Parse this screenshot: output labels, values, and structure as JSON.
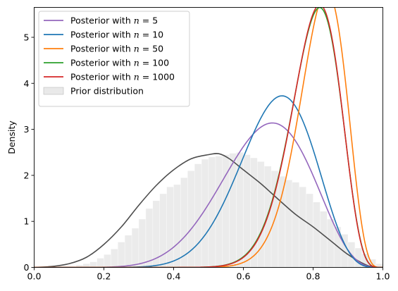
{
  "chart_data": {
    "type": "line",
    "title": "",
    "xlabel": "",
    "ylabel": "Density",
    "xlim": [
      0.0,
      1.0
    ],
    "ylim": [
      0.0,
      5.65
    ],
    "xticks": [
      "0.0",
      "0.2",
      "0.4",
      "0.6",
      "0.8",
      "1.0"
    ],
    "yticks": [
      "0",
      "1",
      "2",
      "3",
      "4",
      "5"
    ],
    "grid": false,
    "legend_position": "top-left",
    "series": [
      {
        "name": "Posterior with $n = 5$",
        "label_prefix": "Posterior with ",
        "label_math": "n",
        "label_value": "= 5",
        "color": "#9467bd",
        "alpha": 9.2,
        "beta": 4.8
      },
      {
        "name": "Posterior with $n = 10$",
        "label_prefix": "Posterior with ",
        "label_math": "n",
        "label_value": "= 10",
        "color": "#1f77b4",
        "alpha": 12.8,
        "beta": 5.8
      },
      {
        "name": "Posterior with $n = 50$",
        "label_prefix": "Posterior with ",
        "label_math": "n",
        "label_value": "= 50",
        "color": "#ff7f0e",
        "alpha": 26.0,
        "beta": 5.8
      },
      {
        "name": "Posterior with $n = 100$",
        "label_prefix": "Posterior with ",
        "label_math": "n",
        "label_value": "= 100",
        "color": "#2ca02c",
        "alpha": 24.5,
        "beta": 6.2
      },
      {
        "name": "Posterior with $n = 1000$",
        "label_prefix": "Posterior with ",
        "label_math": "n",
        "label_value": "= 1000",
        "color": "#d62728",
        "alpha": 25.0,
        "beta": 6.3
      }
    ],
    "prior": {
      "name": "Prior distribution",
      "color": "#d3d3d3",
      "kde_color": "#4d4d4d",
      "histogram": {
        "bin_start": 0.0,
        "bin_width": 0.02,
        "densities": [
          0.0,
          0.0,
          0.0,
          0.0,
          0.02,
          0.02,
          0.05,
          0.08,
          0.12,
          0.2,
          0.28,
          0.4,
          0.55,
          0.7,
          0.85,
          1.05,
          1.28,
          1.45,
          1.6,
          1.75,
          1.8,
          1.95,
          2.1,
          2.25,
          2.35,
          2.4,
          2.42,
          2.45,
          2.48,
          2.5,
          2.45,
          2.38,
          2.3,
          2.2,
          2.1,
          1.98,
          1.9,
          1.85,
          1.75,
          1.6,
          1.42,
          1.22,
          1.05,
          0.88,
          0.72,
          0.55,
          0.42,
          0.3,
          0.18,
          0.08
        ]
      },
      "kde": {
        "x": [
          0.0,
          0.05,
          0.1,
          0.15,
          0.2,
          0.25,
          0.3,
          0.35,
          0.4,
          0.45,
          0.5,
          0.53,
          0.56,
          0.6,
          0.65,
          0.7,
          0.75,
          0.8,
          0.85,
          0.9,
          0.95,
          0.98
        ],
        "y": [
          0.0,
          0.02,
          0.08,
          0.22,
          0.5,
          0.88,
          1.35,
          1.78,
          2.12,
          2.36,
          2.45,
          2.47,
          2.36,
          2.12,
          1.82,
          1.48,
          1.15,
          0.88,
          0.58,
          0.28,
          0.06,
          0.0
        ]
      }
    }
  }
}
